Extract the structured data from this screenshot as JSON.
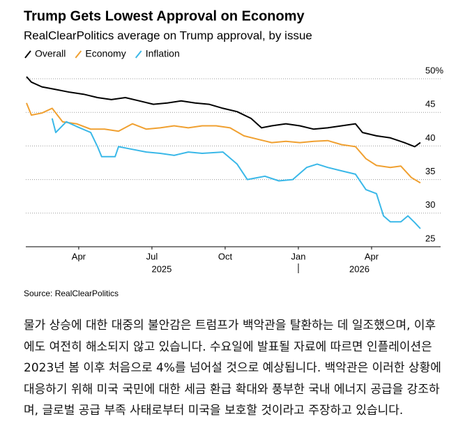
{
  "chart_data": {
    "type": "line",
    "title": "Trump Gets Lowest Approval on Economy",
    "subtitle": "RealClearPolitics average on Trump approval, by issue",
    "source": "Source: RealClearPolitics",
    "xlim": [
      0.86,
      17
    ],
    "xticks": [
      {
        "value": 3,
        "label": "Apr"
      },
      {
        "value": 6,
        "label": "Jul"
      },
      {
        "value": 9,
        "label": "Oct"
      },
      {
        "value": 12,
        "label": "Jan"
      },
      {
        "value": 15,
        "label": "Apr"
      }
    ],
    "x_years": [
      {
        "value": 6.4,
        "label": "2025"
      },
      {
        "value": 14.5,
        "label": "2026"
      }
    ],
    "ylim": [
      25,
      50
    ],
    "yticks": [
      25,
      30,
      35,
      40,
      45,
      {
        "value": 50,
        "label": "50%"
      }
    ],
    "grid": true,
    "series": [
      {
        "name": "Overall",
        "color": "#000000",
        "x": [
          0.86,
          1.06,
          1.49,
          2.06,
          2.63,
          3.2,
          3.77,
          4.34,
          4.91,
          5.49,
          6.06,
          6.63,
          7.2,
          7.77,
          8.34,
          8.91,
          9.49,
          10.06,
          10.49,
          10.91,
          11.49,
          12.06,
          12.63,
          13.2,
          13.77,
          14.34,
          14.63,
          15.2,
          15.77,
          16.34,
          16.77,
          17
        ],
        "values": [
          50.3,
          49.5,
          48.8,
          48.4,
          48,
          47.7,
          47.2,
          46.9,
          47.2,
          46.7,
          46.2,
          46.4,
          46.7,
          46.4,
          46.2,
          45.6,
          45.1,
          44.1,
          42.7,
          43,
          43.3,
          43,
          42.5,
          42.7,
          43,
          43.3,
          42,
          41.5,
          41.2,
          40.5,
          39.9,
          40.5
        ]
      },
      {
        "name": "Economy",
        "color": "#f0a030",
        "x": [
          0.86,
          1.06,
          1.49,
          1.91,
          2.34,
          2.91,
          3.49,
          4.06,
          4.63,
          5.2,
          5.77,
          6.34,
          6.91,
          7.49,
          8.06,
          8.63,
          9.2,
          9.77,
          10.34,
          10.91,
          11.49,
          12.06,
          12.63,
          13.2,
          13.77,
          14.34,
          14.77,
          15.2,
          15.77,
          16.2,
          16.63,
          17
        ],
        "values": [
          46.4,
          44.6,
          44.9,
          45.6,
          43.6,
          43.3,
          42.5,
          42.5,
          42.2,
          43.3,
          42.5,
          42.7,
          43,
          42.7,
          43,
          43,
          42.7,
          41.5,
          41,
          40.5,
          40.7,
          40.5,
          40.7,
          40.8,
          40.2,
          39.9,
          38.1,
          37.1,
          36.8,
          37,
          35.3,
          34.5
        ]
      },
      {
        "name": "Inflation",
        "color": "#3ab8e8",
        "x": [
          1.91,
          2.06,
          2.49,
          2.91,
          3.49,
          3.77,
          3.94,
          4.49,
          4.63,
          5.06,
          5.77,
          6.34,
          6.91,
          7.49,
          8.06,
          8.91,
          9.49,
          9.91,
          10.63,
          11.2,
          11.77,
          12.34,
          12.77,
          13.2,
          13.77,
          14.34,
          14.77,
          15.2,
          15.49,
          15.77,
          16.2,
          16.49,
          16.77,
          17
        ],
        "values": [
          44.1,
          42,
          43.6,
          42.9,
          42,
          39.9,
          38.4,
          38.4,
          39.9,
          39.6,
          39.1,
          38.9,
          38.6,
          39.1,
          38.9,
          39.1,
          37.3,
          35,
          35.5,
          34.8,
          35,
          36.8,
          37.3,
          36.8,
          36.3,
          35.8,
          33.5,
          32.9,
          29.6,
          28.7,
          28.7,
          29.6,
          28.6,
          27.7
        ]
      }
    ]
  },
  "body": {
    "paragraph": "물가 상승에 대한 대중의 불안감은 트럼프가 백악관을 탈환하는 데 일조했으며, 이후에도 여전히 해소되지 않고 있습니다. 수요일에 발표될 자료에 따르면 인플레이션은 2023년 봄 이후 처음으로 4%를 넘어설 것으로 예상됩니다. 백악관은 이러한 상황에 대응하기 위해 미국 국민에 대한 세금 환급 확대와 풍부한 국내 에너지 공급을 강조하며, 글로벌 공급 부족 사태로부터 미국을 보호할 것이라고 주장하고 있습니다."
  }
}
